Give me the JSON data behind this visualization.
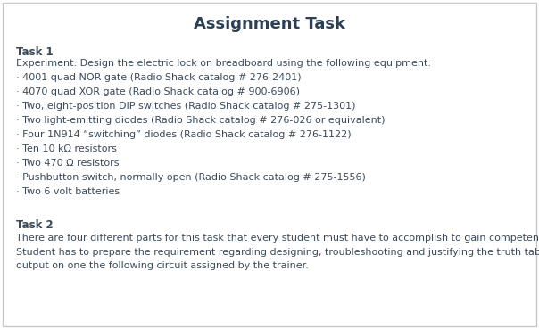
{
  "title": "Assignment Task",
  "title_fontsize": 13,
  "title_color": "#2d3f54",
  "background_color": "#ffffff",
  "border_color": "#c8c8c8",
  "text_color": "#3a4a5a",
  "task1_label": "Task 1",
  "task1_intro": "Experiment: Design the electric lock on breadboard using the following equipment:",
  "task1_bullets": [
    "· 4001 quad NOR gate (Radio Shack catalog # 276-2401)",
    "· 4070 quad XOR gate (Radio Shack catalog # 900-6906)",
    "· Two, eight-position DIP switches (Radio Shack catalog # 275-1301)",
    "· Two light-emitting diodes (Radio Shack catalog # 276-026 or equivalent)",
    "· Four 1N914 “switching” diodes (Radio Shack catalog # 276-1122)",
    "· Ten 10 kΩ resistors",
    "· Two 470 Ω resistors",
    "· Pushbutton switch, normally open (Radio Shack catalog # 275-1556)",
    "· Two 6 volt batteries"
  ],
  "task2_label": "Task 2",
  "task2_line1": "There are four different parts for this task that every student must have to accomplish to gain competency in this unit:",
  "task2_line2": "Student has to prepare the requirement regarding designing, troubleshooting and justifying the truth table and circuit\noutput on one the following circuit assigned by the trainer.",
  "body_fontsize": 8.0,
  "label_fontsize": 8.5
}
